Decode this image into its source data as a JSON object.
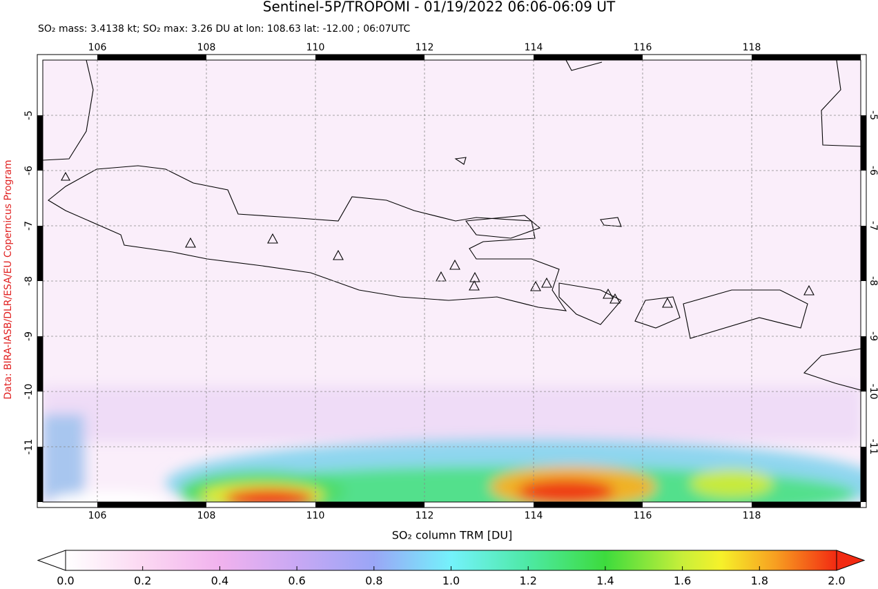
{
  "map": {
    "title": "Sentinel-5P/TROPOMI - 01/19/2022 06:06-06:09 UT",
    "subtitle": "SO₂ mass: 3.4138 kt; SO₂ max: 3.26 DU at lon: 108.63 lat: -12.00 ; 06:07UTC",
    "credit": "Data: BIRA-IASB/DLR/ESA/EU Copernicus Program",
    "xlim": [
      105,
      120
    ],
    "ylim": [
      -4,
      -12
    ],
    "xticks": [
      106,
      108,
      110,
      112,
      114,
      116,
      118
    ],
    "yticks": [
      -5,
      -6,
      -7,
      -8,
      -9,
      -10,
      -11
    ],
    "grid": true,
    "colorbar": {
      "label": "SO₂ column TRM [DU]",
      "lim": [
        0,
        2
      ],
      "ticks": [
        {
          "value": 0,
          "label": "0.0"
        },
        {
          "value": 0.2,
          "label": "0.2"
        },
        {
          "value": 0.4,
          "label": "0.4"
        },
        {
          "value": 0.6,
          "label": "0.6"
        },
        {
          "value": 0.8,
          "label": "0.8"
        },
        {
          "value": 1,
          "label": "1.0"
        },
        {
          "value": 1.2,
          "label": "1.2"
        },
        {
          "value": 1.4,
          "label": "1.4"
        },
        {
          "value": 1.6,
          "label": "1.6"
        },
        {
          "value": 1.8,
          "label": "1.8"
        },
        {
          "value": 2,
          "label": "2.0"
        }
      ]
    }
  }
}
